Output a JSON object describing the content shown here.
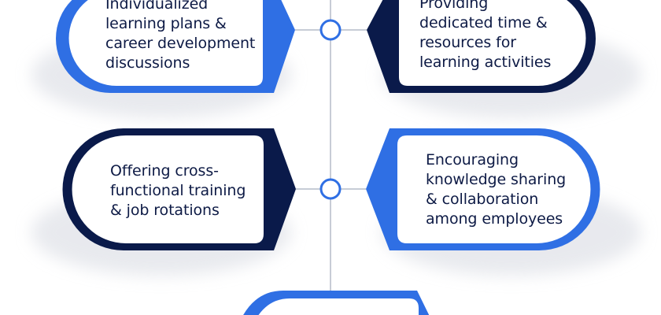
{
  "colors": {
    "navy": "#0a1a4a",
    "blue": "#2f6fe4",
    "connector": "#c7ccd6",
    "text": "#0d1a45",
    "background": "#ffffff"
  },
  "cards": [
    {
      "lines": [
        "Individualized",
        "learning plans &",
        "career development",
        "discussions"
      ]
    },
    {
      "lines": [
        "Providing",
        "dedicated time &",
        "resources for",
        "learning activities"
      ]
    },
    {
      "lines": [
        "Offering cross-",
        "functional training",
        "& job rotations"
      ]
    },
    {
      "lines": [
        "Encouraging",
        "knowledge sharing",
        "& collaboration",
        "among employees"
      ]
    }
  ]
}
